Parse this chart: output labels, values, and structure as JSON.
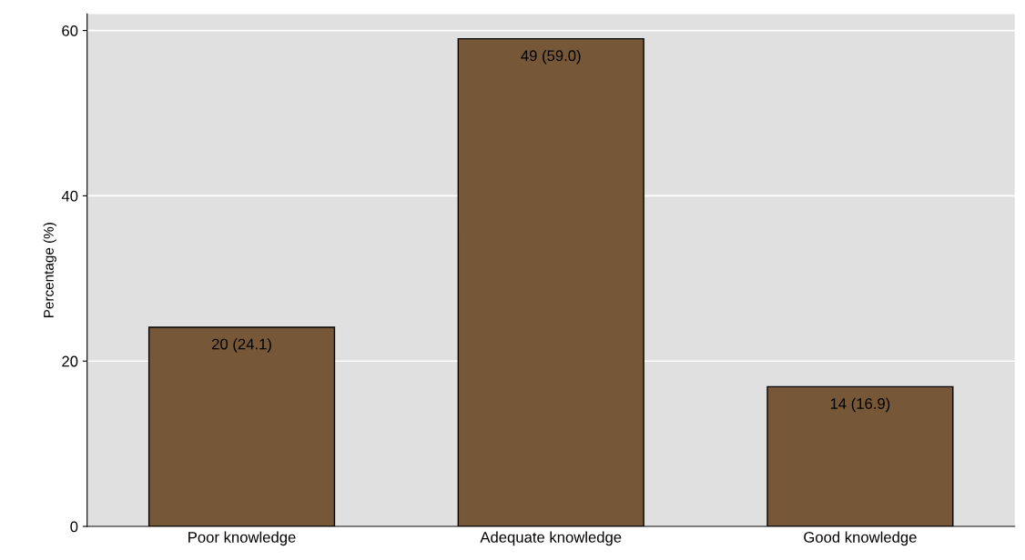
{
  "chart_data": {
    "type": "bar",
    "ylabel": "Percentage (%)",
    "categories": [
      "Poor knowledge",
      "Adequate knowledge",
      "Good knowledge"
    ],
    "values": [
      24.1,
      59.0,
      16.9
    ],
    "value_labels": [
      "20 (24.1)",
      "49 (59.0)",
      "14 (16.9)"
    ],
    "color": "#765838",
    "ylim": [
      0,
      62
    ],
    "yticks": [
      0,
      20,
      40,
      60
    ],
    "grid": "y",
    "legend": false
  }
}
